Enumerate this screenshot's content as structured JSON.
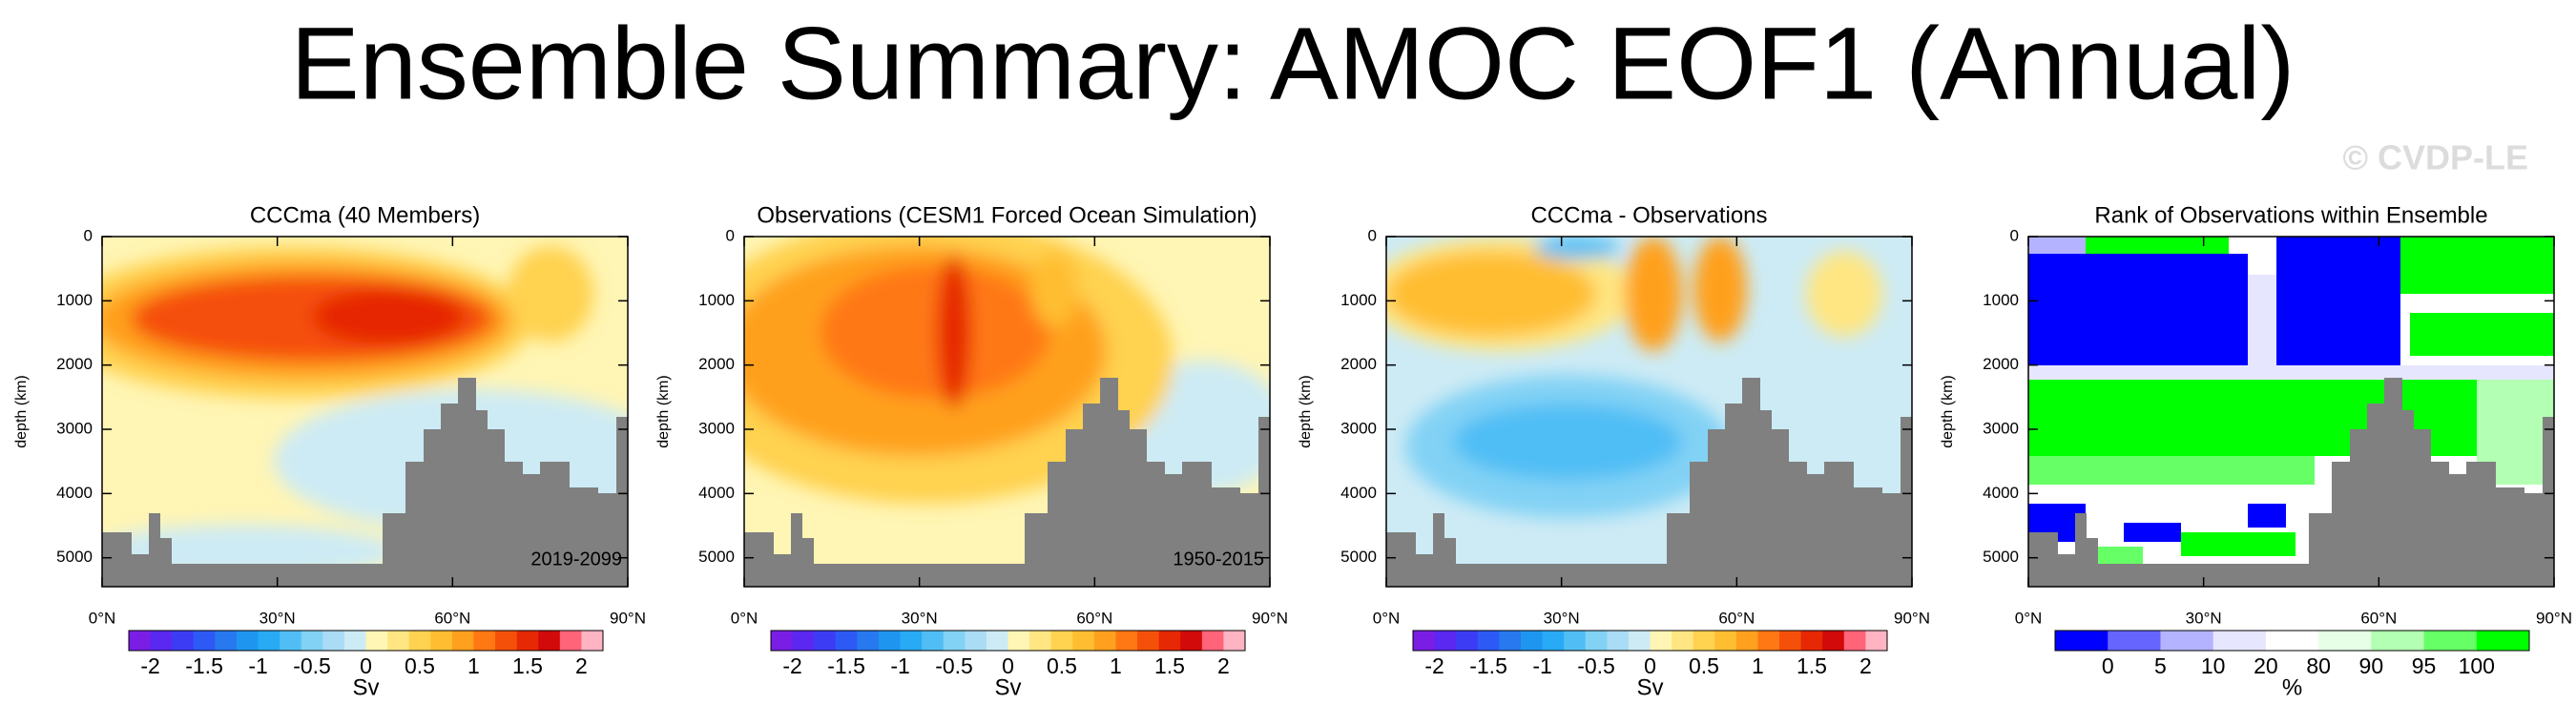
{
  "title": "Ensemble Summary: AMOC EOF1 (Annual)",
  "watermark": "© CVDP-LE",
  "chart_data": [
    {
      "type": "contour",
      "title": "CCCma (40 Members)",
      "period_label": "2019-2099",
      "ylabel": "depth (km)",
      "xlim": [
        0,
        90
      ],
      "xticks": [
        {
          "value": 0,
          "label": "0°N"
        },
        {
          "value": 30,
          "label": "30°N"
        },
        {
          "value": 60,
          "label": "60°N"
        },
        {
          "value": 90,
          "label": "90°N"
        }
      ],
      "ylim": [
        0,
        5450
      ],
      "yticks": [
        0,
        1000,
        2000,
        3000,
        4000,
        5000
      ],
      "colorbar": {
        "label": "Sv",
        "lim": [
          -2.2,
          2.2
        ],
        "ticks": [
          -2,
          -1.5,
          -1,
          -0.5,
          0,
          0.5,
          1,
          1.5,
          2
        ],
        "colors": [
          "#7a1ee6",
          "#5a28f0",
          "#3c3cf5",
          "#2d5af5",
          "#2878f0",
          "#1e96f0",
          "#28aaf5",
          "#50bef5",
          "#82d2f5",
          "#aadcf5",
          "#cdebf5",
          "#fff5b4",
          "#ffe682",
          "#ffd250",
          "#ffbe32",
          "#ffa01e",
          "#ff7814",
          "#f5500a",
          "#e62805",
          "#d20a0a",
          "#ff6478",
          "#ffb4c3"
        ]
      }
    },
    {
      "type": "contour",
      "title": "Observations (CESM1 Forced Ocean Simulation)",
      "period_label": "1950-2015",
      "ylabel": "depth (km)",
      "xlim": [
        0,
        90
      ],
      "xticks": [
        {
          "value": 0,
          "label": "0°N"
        },
        {
          "value": 30,
          "label": "30°N"
        },
        {
          "value": 60,
          "label": "60°N"
        },
        {
          "value": 90,
          "label": "90°N"
        }
      ],
      "ylim": [
        0,
        5450
      ],
      "yticks": [
        0,
        1000,
        2000,
        3000,
        4000,
        5000
      ],
      "colorbar": {
        "label": "Sv",
        "lim": [
          -2.2,
          2.2
        ],
        "ticks": [
          -2,
          -1.5,
          -1,
          -0.5,
          0,
          0.5,
          1,
          1.5,
          2
        ],
        "colors": [
          "#7a1ee6",
          "#5a28f0",
          "#3c3cf5",
          "#2d5af5",
          "#2878f0",
          "#1e96f0",
          "#28aaf5",
          "#50bef5",
          "#82d2f5",
          "#aadcf5",
          "#cdebf5",
          "#fff5b4",
          "#ffe682",
          "#ffd250",
          "#ffbe32",
          "#ffa01e",
          "#ff7814",
          "#f5500a",
          "#e62805",
          "#d20a0a",
          "#ff6478",
          "#ffb4c3"
        ]
      }
    },
    {
      "type": "contour",
      "title": "CCCma - Observations",
      "ylabel": "depth (km)",
      "xlim": [
        0,
        90
      ],
      "xticks": [
        {
          "value": 0,
          "label": "0°N"
        },
        {
          "value": 30,
          "label": "30°N"
        },
        {
          "value": 60,
          "label": "60°N"
        },
        {
          "value": 90,
          "label": "90°N"
        }
      ],
      "ylim": [
        0,
        5450
      ],
      "yticks": [
        0,
        1000,
        2000,
        3000,
        4000,
        5000
      ],
      "colorbar": {
        "label": "Sv",
        "lim": [
          -2.2,
          2.2
        ],
        "ticks": [
          -2,
          -1.5,
          -1,
          -0.5,
          0,
          0.5,
          1,
          1.5,
          2
        ],
        "colors": [
          "#7a1ee6",
          "#5a28f0",
          "#3c3cf5",
          "#2d5af5",
          "#2878f0",
          "#1e96f0",
          "#28aaf5",
          "#50bef5",
          "#82d2f5",
          "#aadcf5",
          "#cdebf5",
          "#fff5b4",
          "#ffe682",
          "#ffd250",
          "#ffbe32",
          "#ffa01e",
          "#ff7814",
          "#f5500a",
          "#e62805",
          "#d20a0a",
          "#ff6478",
          "#ffb4c3"
        ]
      }
    },
    {
      "type": "rank",
      "title": "Rank of Observations within Ensemble",
      "ylabel": "depth (km)",
      "xlim": [
        0,
        90
      ],
      "xticks": [
        {
          "value": 0,
          "label": "0°N"
        },
        {
          "value": 30,
          "label": "30°N"
        },
        {
          "value": 60,
          "label": "60°N"
        },
        {
          "value": 90,
          "label": "90°N"
        }
      ],
      "ylim": [
        0,
        5450
      ],
      "yticks": [
        0,
        1000,
        2000,
        3000,
        4000,
        5000
      ],
      "colorbar": {
        "label": "%",
        "ticks": [
          0,
          5,
          10,
          20,
          80,
          90,
          95,
          100
        ],
        "colors": [
          "#0000ff",
          "#6666ff",
          "#b3b3ff",
          "#e6e6ff",
          "#ffffff",
          "#e6ffe6",
          "#b3ffb3",
          "#66ff66",
          "#00ff00"
        ]
      }
    }
  ]
}
